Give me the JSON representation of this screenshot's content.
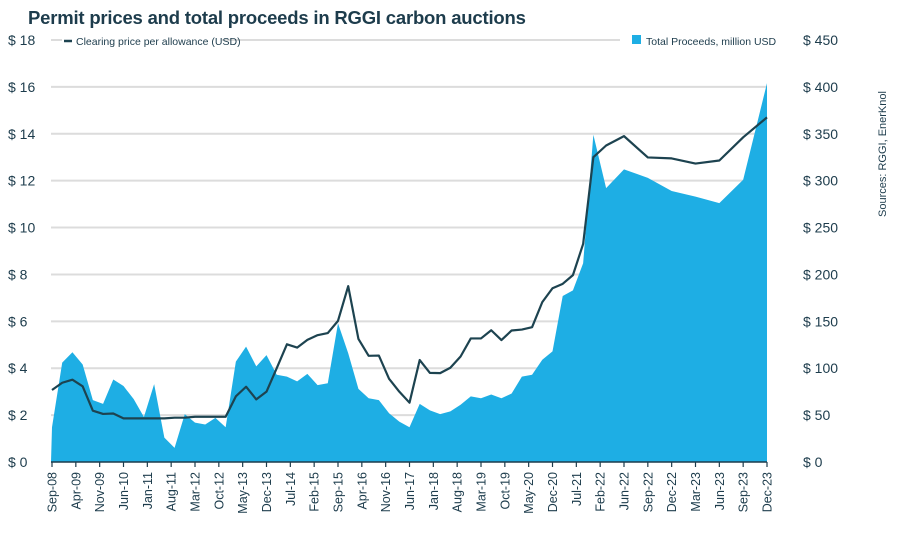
{
  "chart_data": {
    "type": "line+area",
    "title": "Permit prices and total proceeds in RGGI carbon auctions",
    "source": "Sources: RGGI, EnerKnol",
    "colors": {
      "price_line": "#1d4350",
      "proceeds_area": "#1eaee4",
      "grid": "#dcdcdc",
      "text": "#1d3c4c"
    },
    "grid": true,
    "legend_placement": "top",
    "y_left": {
      "label": "",
      "range": [
        0,
        18
      ],
      "ticks": [
        "$ 0",
        "$ 2",
        "$ 4",
        "$ 6",
        "$ 8",
        "$ 10",
        "$ 12",
        "$ 14",
        "$ 16",
        "$ 18"
      ]
    },
    "y_right": {
      "label": "",
      "range": [
        0,
        450
      ],
      "ticks": [
        "$ 0",
        "$ 50",
        "$ 100",
        "$ 150",
        "$ 200",
        "$ 250",
        "$ 300",
        "$ 350",
        "$ 400",
        "$ 450"
      ]
    },
    "x_ticks": [
      "Sep-08",
      "Apr-09",
      "Nov-09",
      "Jun-10",
      "Jan-11",
      "Aug-11",
      "Mar-12",
      "Oct-12",
      "May-13",
      "Dec-13",
      "Jul-14",
      "Feb-15",
      "Sep-15",
      "Apr-16",
      "Nov-16",
      "Jun-17",
      "Jan-18",
      "Aug-18",
      "Mar-19",
      "Oct-19",
      "May-20",
      "Dec-20",
      "Jul-21",
      "Feb-22",
      "Jun-22",
      "Sep-22",
      "Dec-22",
      "Mar-23",
      "Jun-23",
      "Sep-23",
      "Dec-23"
    ],
    "x": [
      "Sep-08",
      "Dec-08",
      "Mar-09",
      "Jun-09",
      "Sep-09",
      "Dec-09",
      "Mar-10",
      "Jun-10",
      "Sep-10",
      "Dec-10",
      "Mar-11",
      "Jun-11",
      "Sep-11",
      "Dec-11",
      "Mar-12",
      "Jun-12",
      "Sep-12",
      "Dec-12",
      "Mar-13",
      "Jun-13",
      "Sep-13",
      "Dec-13",
      "Mar-14",
      "Jun-14",
      "Sep-14",
      "Dec-14",
      "Mar-15",
      "Jun-15",
      "Sep-15",
      "Dec-15",
      "Mar-16",
      "Jun-16",
      "Sep-16",
      "Dec-16",
      "Mar-17",
      "Jun-17",
      "Sep-17",
      "Dec-17",
      "Mar-18",
      "Jun-18",
      "Sep-18",
      "Dec-18",
      "Mar-19",
      "Jun-19",
      "Sep-19",
      "Dec-19",
      "Mar-20",
      "Jun-20",
      "Sep-20",
      "Dec-20",
      "Mar-21",
      "Jun-21",
      "Sep-21",
      "Dec-21",
      "Mar-22",
      "Jun-22",
      "Sep-22",
      "Dec-22",
      "Mar-23",
      "Jun-23",
      "Sep-23",
      "Dec-23"
    ],
    "series": [
      {
        "name": "Clearing price per allowance (USD)",
        "type": "line",
        "axis": "left",
        "values": [
          3.07,
          3.38,
          3.51,
          3.23,
          2.19,
          2.05,
          2.07,
          1.86,
          1.86,
          1.86,
          1.86,
          1.86,
          1.89,
          1.89,
          1.93,
          1.93,
          1.93,
          1.93,
          2.8,
          3.21,
          2.67,
          3.0,
          4.0,
          5.02,
          4.88,
          5.21,
          5.41,
          5.5,
          6.02,
          7.5,
          5.25,
          4.53,
          4.54,
          3.55,
          3.0,
          2.53,
          4.35,
          3.8,
          3.79,
          4.02,
          4.5,
          5.27,
          5.27,
          5.62,
          5.2,
          5.61,
          5.65,
          5.75,
          6.82,
          7.41,
          7.6,
          7.97,
          9.3,
          13.0,
          13.5,
          13.9,
          12.99,
          12.95,
          12.73,
          12.86,
          13.85,
          14.7
        ]
      },
      {
        "name": "Total Proceeds, million USD",
        "type": "area",
        "axis": "right",
        "values": [
          37,
          106,
          117,
          104,
          66,
          62,
          88,
          81,
          67,
          48,
          83,
          26,
          15,
          51,
          42,
          40,
          47,
          37,
          107,
          123,
          102,
          114,
          93,
          91,
          86,
          94,
          82,
          84,
          148,
          116,
          78,
          68,
          66,
          52,
          43,
          37,
          62,
          55,
          51,
          54,
          61,
          70,
          68,
          72,
          68,
          73,
          91,
          93,
          109,
          118,
          177,
          183,
          212,
          349,
          292,
          312,
          303,
          289,
          283,
          276,
          301,
          404
        ]
      }
    ]
  }
}
